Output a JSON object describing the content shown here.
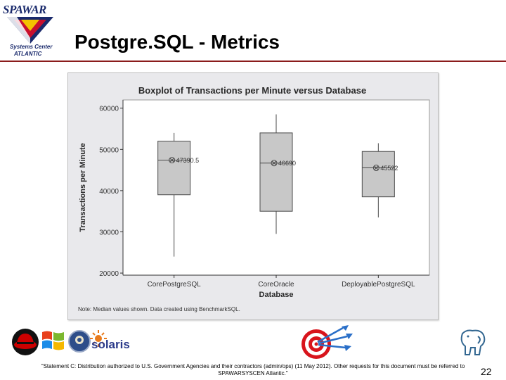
{
  "header": {
    "logo_name": "SPAWAR",
    "logo_sub1": "Systems Center",
    "logo_sub2": "ATLANTIC",
    "title": "Postgre.SQL - Metrics"
  },
  "chart_data": {
    "type": "boxplot",
    "title": "Boxplot of Transactions per Minute versus Database",
    "xlabel": "Database",
    "ylabel": "Transactions per Minute",
    "ylim": [
      19500,
      62000
    ],
    "yticks": [
      20000,
      30000,
      40000,
      50000,
      60000
    ],
    "ytick_labels": [
      "20000",
      "30000",
      "40000",
      "50000",
      "60000"
    ],
    "categories": [
      "CorePostgreSQL",
      "CoreOracle",
      "DeployablePostgreSQL"
    ],
    "boxes": [
      {
        "min": 24000,
        "q1": 39000,
        "median": 47390.5,
        "q3": 52000,
        "max": 54000,
        "median_label": "47390.5"
      },
      {
        "min": 29500,
        "q1": 35000,
        "median": 46690,
        "q3": 54000,
        "max": 58500,
        "median_label": "46690"
      },
      {
        "min": 33500,
        "q1": 38500,
        "median": 45522,
        "q3": 49500,
        "max": 51500,
        "median_label": "45522"
      }
    ],
    "note": "Note: Median values shown.  Data created using BenchmarkSQL.",
    "colors": {
      "box_fill": "#c8c8c8",
      "box_edge": "#4a4a4a",
      "panel_bg": "#e9e9ec",
      "plot_bg": "#ffffff"
    }
  },
  "footer": {
    "statement": "\"Statement C:  Distribution authorized to U.S. Government Agencies and their contractors (admin/ops) (11 May 2012).  Other requests for this document must be referred to SPAWARSYSCEN Atlantic.\"",
    "page_number": "22",
    "logos": {
      "redhat_icon": "redhat-logo-icon",
      "windows_icon": "windows-logo-icon",
      "gnome_icon": "gnome-logo-icon",
      "solaris_text": "solaris",
      "target_icon": "bullseye-target-icon",
      "postgres_icon": "postgresql-elephant-icon"
    }
  }
}
